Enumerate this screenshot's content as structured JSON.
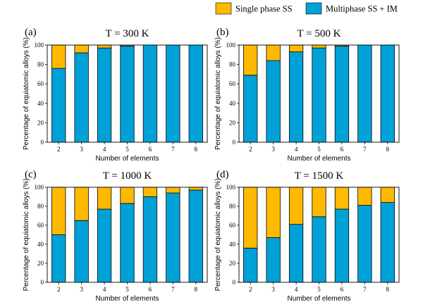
{
  "legend": {
    "items": [
      {
        "label": "Single phase SS",
        "color": "#FFB900"
      },
      {
        "label": "Multiphase SS + IM",
        "color": "#00A1D6"
      }
    ]
  },
  "chart_data": [
    {
      "type": "bar",
      "stacked": true,
      "label": "(a)",
      "title": "T = 300 K",
      "xlabel": "Number of elements",
      "ylabel": "Percentage of equiatomic alloys (%)",
      "ylim": [
        0,
        100
      ],
      "yticks": [
        0,
        20,
        40,
        60,
        80,
        100
      ],
      "categories": [
        "2",
        "3",
        "4",
        "5",
        "6",
        "7",
        "8"
      ],
      "series": [
        {
          "name": "Multiphase SS + IM",
          "values": [
            76,
            92,
            97,
            99,
            100,
            100,
            100
          ]
        },
        {
          "name": "Single phase SS",
          "values": [
            24,
            8,
            3,
            1,
            0,
            0,
            0
          ]
        }
      ]
    },
    {
      "type": "bar",
      "stacked": true,
      "label": "(b)",
      "title": "T = 500 K",
      "xlabel": "Number of elements",
      "ylabel": "Percentage of equiatomic alloys (%)",
      "ylim": [
        0,
        100
      ],
      "yticks": [
        0,
        20,
        40,
        60,
        80,
        100
      ],
      "categories": [
        "2",
        "3",
        "4",
        "5",
        "6",
        "7",
        "8"
      ],
      "series": [
        {
          "name": "Multiphase SS + IM",
          "values": [
            69,
            84,
            93,
            97,
            99,
            100,
            100
          ]
        },
        {
          "name": "Single phase SS",
          "values": [
            31,
            16,
            7,
            3,
            1,
            0,
            0
          ]
        }
      ]
    },
    {
      "type": "bar",
      "stacked": true,
      "label": "(c)",
      "title": "T = 1000 K",
      "xlabel": "Number of elements",
      "ylabel": "Percentage of equiatomic alloys (%)",
      "ylim": [
        0,
        100
      ],
      "yticks": [
        0,
        20,
        40,
        60,
        80,
        100
      ],
      "categories": [
        "2",
        "3",
        "4",
        "5",
        "6",
        "7",
        "8"
      ],
      "series": [
        {
          "name": "Multiphase SS + IM",
          "values": [
            50,
            65,
            77,
            83,
            90,
            94,
            97
          ]
        },
        {
          "name": "Single phase SS",
          "values": [
            50,
            35,
            23,
            17,
            10,
            6,
            3
          ]
        }
      ]
    },
    {
      "type": "bar",
      "stacked": true,
      "label": "(d)",
      "title": "T = 1500 K",
      "xlabel": "Number of elements",
      "ylabel": "Percentage of equiatomic alloys (%)",
      "ylim": [
        0,
        100
      ],
      "yticks": [
        0,
        20,
        40,
        60,
        80,
        100
      ],
      "categories": [
        "2",
        "3",
        "4",
        "5",
        "6",
        "7",
        "8"
      ],
      "series": [
        {
          "name": "Multiphase SS + IM",
          "values": [
            36,
            47,
            61,
            69,
            77,
            81,
            84
          ]
        },
        {
          "name": "Single phase SS",
          "values": [
            64,
            53,
            39,
            31,
            23,
            19,
            16
          ]
        }
      ]
    }
  ]
}
